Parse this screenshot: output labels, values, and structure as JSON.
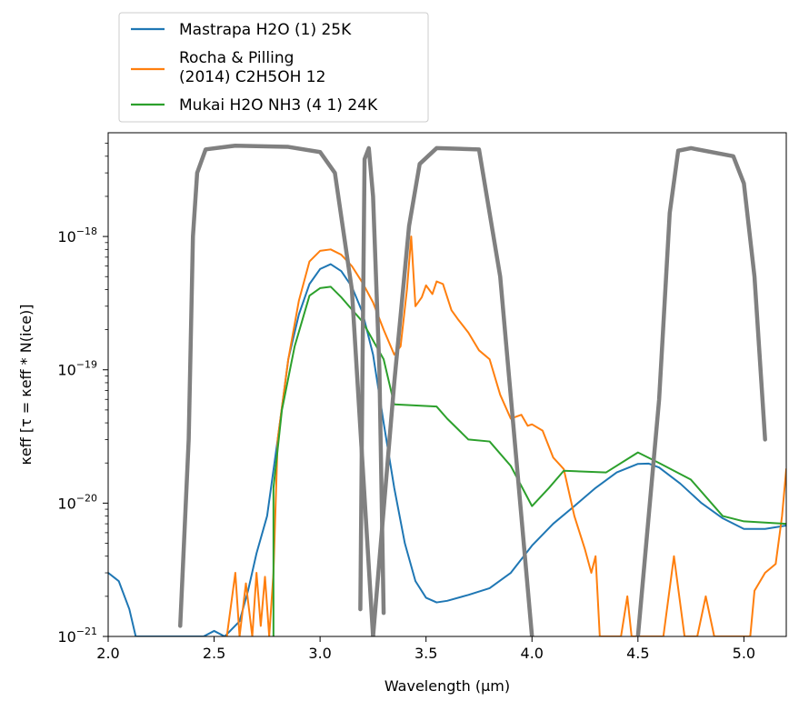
{
  "chart_data": {
    "type": "line",
    "xlabel": "Wavelength (μm)",
    "ylabel": "κeff [τ = κeff * N(ice)]",
    "xlim": [
      2.0,
      5.2
    ],
    "ylim": [
      1e-21,
      6e-18
    ],
    "yscale": "log",
    "x_ticks": [
      2.0,
      2.5,
      3.0,
      3.5,
      4.0,
      4.5,
      5.0
    ],
    "x_tick_labels": [
      "2.0",
      "2.5",
      "3.0",
      "3.5",
      "4.0",
      "4.5",
      "5.0"
    ],
    "y_ticks": [
      -21,
      -20,
      -19,
      -18
    ],
    "y_tick_labels": [
      "−21",
      "−20",
      "−19",
      "−18"
    ],
    "grid": false,
    "legend_position": "above-left",
    "series": [
      {
        "name": "Mastrapa H2O (1) 25K",
        "color": "#1f77b4",
        "points": [
          [
            2.0,
            3e-21
          ],
          [
            2.05,
            2.6e-21
          ],
          [
            2.1,
            1.6e-21
          ],
          [
            2.13,
            1e-21
          ],
          [
            2.45,
            1e-21
          ],
          [
            2.5,
            1.1e-21
          ],
          [
            2.55,
            1e-21
          ],
          [
            2.62,
            1.3e-21
          ],
          [
            2.66,
            2.2e-21
          ],
          [
            2.7,
            4.2e-21
          ],
          [
            2.75,
            8e-21
          ],
          [
            2.8,
            3e-20
          ],
          [
            2.85,
            1.2e-19
          ],
          [
            2.9,
            2.6e-19
          ],
          [
            2.95,
            4.4e-19
          ],
          [
            3.0,
            5.7e-19
          ],
          [
            3.05,
            6.2e-19
          ],
          [
            3.1,
            5.5e-19
          ],
          [
            3.15,
            4.2e-19
          ],
          [
            3.2,
            2.7e-19
          ],
          [
            3.25,
            1.3e-19
          ],
          [
            3.3,
            4e-20
          ],
          [
            3.35,
            1.3e-20
          ],
          [
            3.4,
            5e-21
          ],
          [
            3.45,
            2.6e-21
          ],
          [
            3.5,
            1.95e-21
          ],
          [
            3.55,
            1.8e-21
          ],
          [
            3.6,
            1.85e-21
          ],
          [
            3.7,
            2.05e-21
          ],
          [
            3.8,
            2.3e-21
          ],
          [
            3.9,
            3e-21
          ],
          [
            4.0,
            4.8e-21
          ],
          [
            4.1,
            7e-21
          ],
          [
            4.2,
            9.5e-21
          ],
          [
            4.3,
            1.3e-20
          ],
          [
            4.4,
            1.7e-20
          ],
          [
            4.5,
            1.97e-20
          ],
          [
            4.55,
            1.98e-20
          ],
          [
            4.6,
            1.85e-20
          ],
          [
            4.7,
            1.4e-20
          ],
          [
            4.8,
            1e-20
          ],
          [
            4.9,
            7.7e-21
          ],
          [
            5.0,
            6.4e-21
          ],
          [
            5.1,
            6.4e-21
          ],
          [
            5.2,
            6.8e-21
          ]
        ]
      },
      {
        "name": "Rocha & Pilling (2014) C2H5OH 12",
        "color": "#ff7f0e",
        "points": [
          [
            2.56,
            1e-21
          ],
          [
            2.6,
            3e-21
          ],
          [
            2.62,
            1e-21
          ],
          [
            2.65,
            2.5e-21
          ],
          [
            2.68,
            1e-21
          ],
          [
            2.7,
            3e-21
          ],
          [
            2.72,
            1.2e-21
          ],
          [
            2.74,
            2.8e-21
          ],
          [
            2.76,
            1e-21
          ],
          [
            2.78,
            3e-21
          ],
          [
            2.8,
            3e-20
          ],
          [
            2.85,
            1.2e-19
          ],
          [
            2.9,
            3.3e-19
          ],
          [
            2.95,
            6.5e-19
          ],
          [
            3.0,
            7.8e-19
          ],
          [
            3.05,
            8e-19
          ],
          [
            3.1,
            7.3e-19
          ],
          [
            3.15,
            6e-19
          ],
          [
            3.2,
            4.5e-19
          ],
          [
            3.25,
            3.2e-19
          ],
          [
            3.3,
            2e-19
          ],
          [
            3.35,
            1.3e-19
          ],
          [
            3.38,
            1.5e-19
          ],
          [
            3.41,
            4e-19
          ],
          [
            3.43,
            1e-18
          ],
          [
            3.45,
            3e-19
          ],
          [
            3.48,
            3.5e-19
          ],
          [
            3.5,
            4.3e-19
          ],
          [
            3.53,
            3.7e-19
          ],
          [
            3.55,
            4.6e-19
          ],
          [
            3.58,
            4.4e-19
          ],
          [
            3.62,
            2.8e-19
          ],
          [
            3.65,
            2.4e-19
          ],
          [
            3.7,
            1.9e-19
          ],
          [
            3.75,
            1.4e-19
          ],
          [
            3.8,
            1.2e-19
          ],
          [
            3.85,
            6.5e-20
          ],
          [
            3.9,
            4.3e-20
          ],
          [
            3.95,
            4.6e-20
          ],
          [
            3.98,
            3.8e-20
          ],
          [
            4.0,
            3.9e-20
          ],
          [
            4.05,
            3.5e-20
          ],
          [
            4.1,
            2.2e-20
          ],
          [
            4.15,
            1.8e-20
          ],
          [
            4.2,
            8e-21
          ],
          [
            4.25,
            4.5e-21
          ],
          [
            4.28,
            3e-21
          ],
          [
            4.3,
            4e-21
          ],
          [
            4.32,
            1e-21
          ],
          [
            4.42,
            1e-21
          ],
          [
            4.45,
            2e-21
          ],
          [
            4.47,
            1e-21
          ],
          [
            4.62,
            1e-21
          ],
          [
            4.67,
            4e-21
          ],
          [
            4.72,
            1e-21
          ],
          [
            4.78,
            1e-21
          ],
          [
            4.82,
            2e-21
          ],
          [
            4.86,
            1e-21
          ],
          [
            5.03,
            1e-21
          ],
          [
            5.05,
            2.2e-21
          ],
          [
            5.1,
            3e-21
          ],
          [
            5.15,
            3.5e-21
          ],
          [
            5.18,
            8e-21
          ],
          [
            5.2,
            1.8e-20
          ]
        ]
      },
      {
        "name": "Mukai H2O NH3 (4 1) 24K",
        "color": "#2ca02c",
        "points": [
          [
            2.78,
            1e-21
          ],
          [
            2.78,
            1.3e-20
          ],
          [
            2.82,
            5e-20
          ],
          [
            2.88,
            1.5e-19
          ],
          [
            2.95,
            3.6e-19
          ],
          [
            3.0,
            4.1e-19
          ],
          [
            3.05,
            4.2e-19
          ],
          [
            3.1,
            3.5e-19
          ],
          [
            3.2,
            2.3e-19
          ],
          [
            3.3,
            1.2e-19
          ],
          [
            3.35,
            5.5e-20
          ],
          [
            3.55,
            5.3e-20
          ],
          [
            3.6,
            4.3e-20
          ],
          [
            3.7,
            3e-20
          ],
          [
            3.8,
            2.9e-20
          ],
          [
            3.9,
            1.9e-20
          ],
          [
            4.0,
            9.5e-21
          ],
          [
            4.08,
            1.3e-20
          ],
          [
            4.15,
            1.75e-20
          ],
          [
            4.35,
            1.7e-20
          ],
          [
            4.5,
            2.4e-20
          ],
          [
            4.6,
            2e-20
          ],
          [
            4.75,
            1.5e-20
          ],
          [
            4.9,
            8e-21
          ],
          [
            5.0,
            7.3e-21
          ],
          [
            5.2,
            7e-21
          ]
        ]
      },
      {
        "color": "#808080",
        "points": [
          [
            2.34,
            1.2e-21
          ],
          [
            2.38,
            3e-20
          ],
          [
            2.4,
            1e-18
          ],
          [
            2.42,
            3e-18
          ],
          [
            2.46,
            4.5e-18
          ],
          [
            2.6,
            4.8e-18
          ],
          [
            2.85,
            4.7e-18
          ],
          [
            3.0,
            4.3e-18
          ],
          [
            3.07,
            3e-18
          ],
          [
            3.15,
            4e-19
          ],
          [
            3.25,
            1e-21
          ]
        ]
      },
      {
        "color": "#808080",
        "points": [
          [
            3.19,
            1.6e-21
          ],
          [
            3.2,
            1e-19
          ],
          [
            3.21,
            3.8e-18
          ],
          [
            3.23,
            4.6e-18
          ],
          [
            3.25,
            2e-18
          ],
          [
            3.28,
            1e-19
          ],
          [
            3.3,
            1.5e-21
          ]
        ]
      },
      {
        "color": "#808080",
        "points": [
          [
            3.25,
            1e-21
          ],
          [
            3.35,
            8e-20
          ],
          [
            3.42,
            1.2e-18
          ],
          [
            3.47,
            3.5e-18
          ],
          [
            3.55,
            4.6e-18
          ],
          [
            3.75,
            4.5e-18
          ],
          [
            3.85,
            5e-19
          ],
          [
            4.0,
            1e-21
          ]
        ]
      },
      {
        "color": "#808080",
        "points": [
          [
            4.5,
            1e-21
          ],
          [
            4.6,
            6e-20
          ],
          [
            4.65,
            1.5e-18
          ],
          [
            4.69,
            4.4e-18
          ],
          [
            4.75,
            4.6e-18
          ],
          [
            4.95,
            4e-18
          ],
          [
            5.0,
            2.5e-18
          ],
          [
            5.05,
            5e-19
          ],
          [
            5.1,
            3e-20
          ]
        ]
      }
    ]
  }
}
